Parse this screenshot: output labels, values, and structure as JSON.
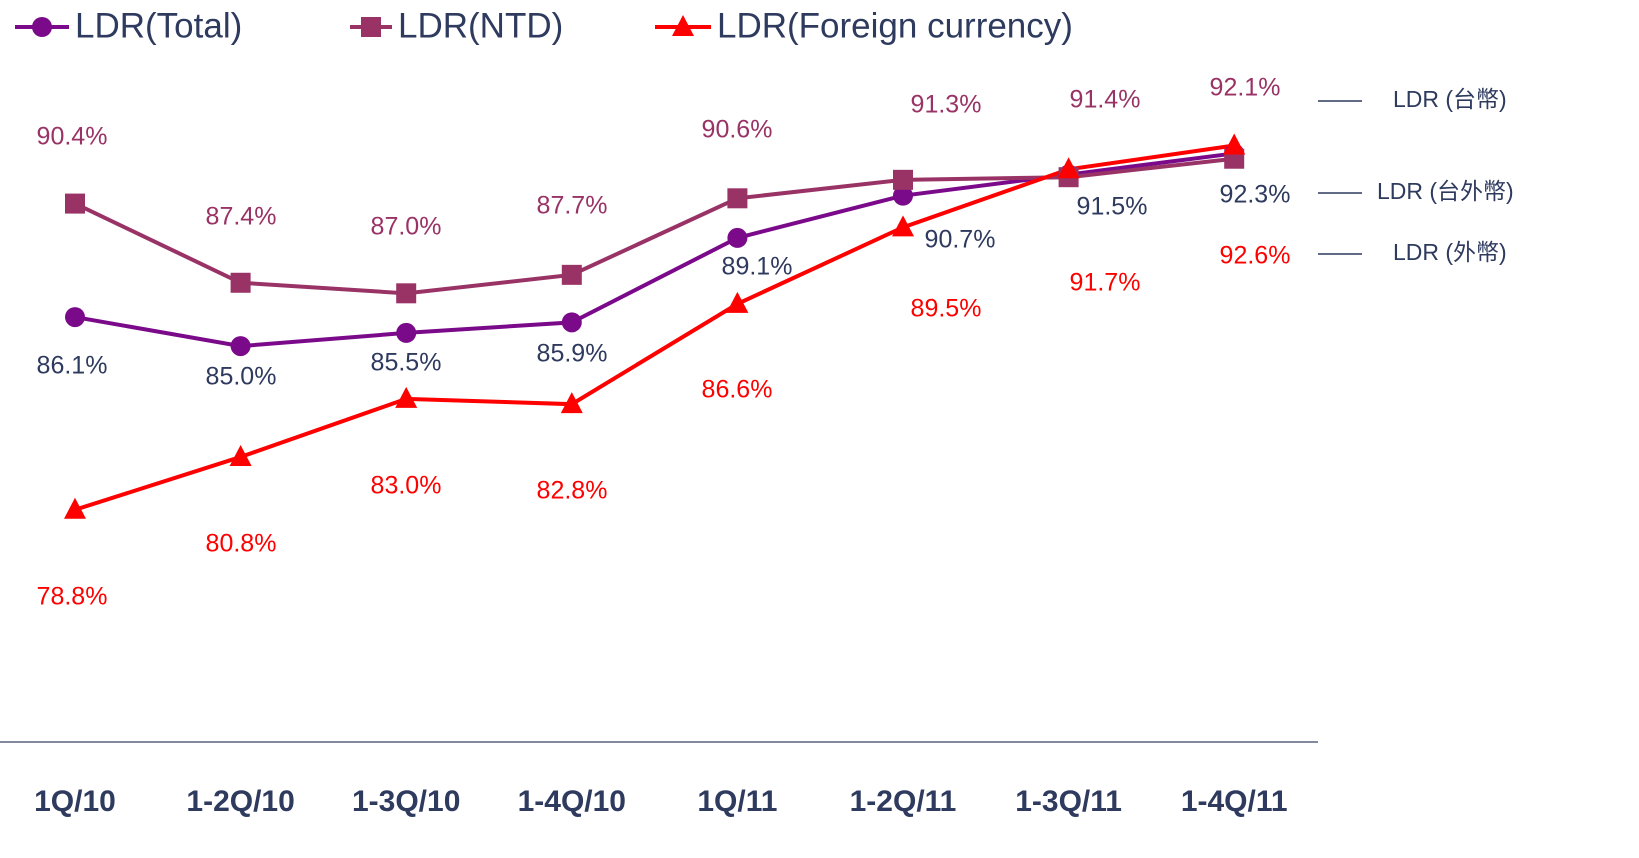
{
  "chart_data": {
    "type": "line",
    "categories": [
      "1Q/10",
      "1-2Q/10",
      "1-3Q/10",
      "1-4Q/10",
      "1Q/11",
      "1-2Q/11",
      "1-3Q/11",
      "1-4Q/11"
    ],
    "series": [
      {
        "name": "LDR(Total)",
        "color": "#7a0a8a",
        "marker": "circle",
        "label_color": "#2e3a5e",
        "values": [
          86.1,
          85.0,
          85.5,
          85.9,
          89.1,
          90.7,
          91.5,
          92.3
        ],
        "value_labels": [
          "86.1%",
          "85.0%",
          "85.5%",
          "85.9%",
          "89.1%",
          "90.7%",
          "91.5%",
          "92.3%"
        ]
      },
      {
        "name": "LDR(NTD)",
        "color": "#993366",
        "marker": "square",
        "label_color": "#993366",
        "values": [
          90.4,
          87.4,
          87.0,
          87.7,
          90.6,
          91.3,
          91.4,
          92.1
        ],
        "value_labels": [
          "90.4%",
          "87.4%",
          "87.0%",
          "87.7%",
          "90.6%",
          "91.3%",
          "91.4%",
          "92.1%"
        ]
      },
      {
        "name": "LDR(Foreign currency)",
        "color": "#ff0000",
        "marker": "triangle",
        "label_color": "#ff0000",
        "values": [
          78.8,
          80.8,
          83.0,
          82.8,
          86.6,
          89.5,
          91.7,
          92.6
        ],
        "value_labels": [
          "78.8%",
          "80.8%",
          "83.0%",
          "82.8%",
          "86.6%",
          "89.5%",
          "91.7%",
          "92.6%"
        ]
      }
    ],
    "annotations": [
      "LDR (台幣)",
      "LDR (台外幣)",
      "LDR (外幣)"
    ],
    "ylim": [
      70,
      98
    ]
  }
}
